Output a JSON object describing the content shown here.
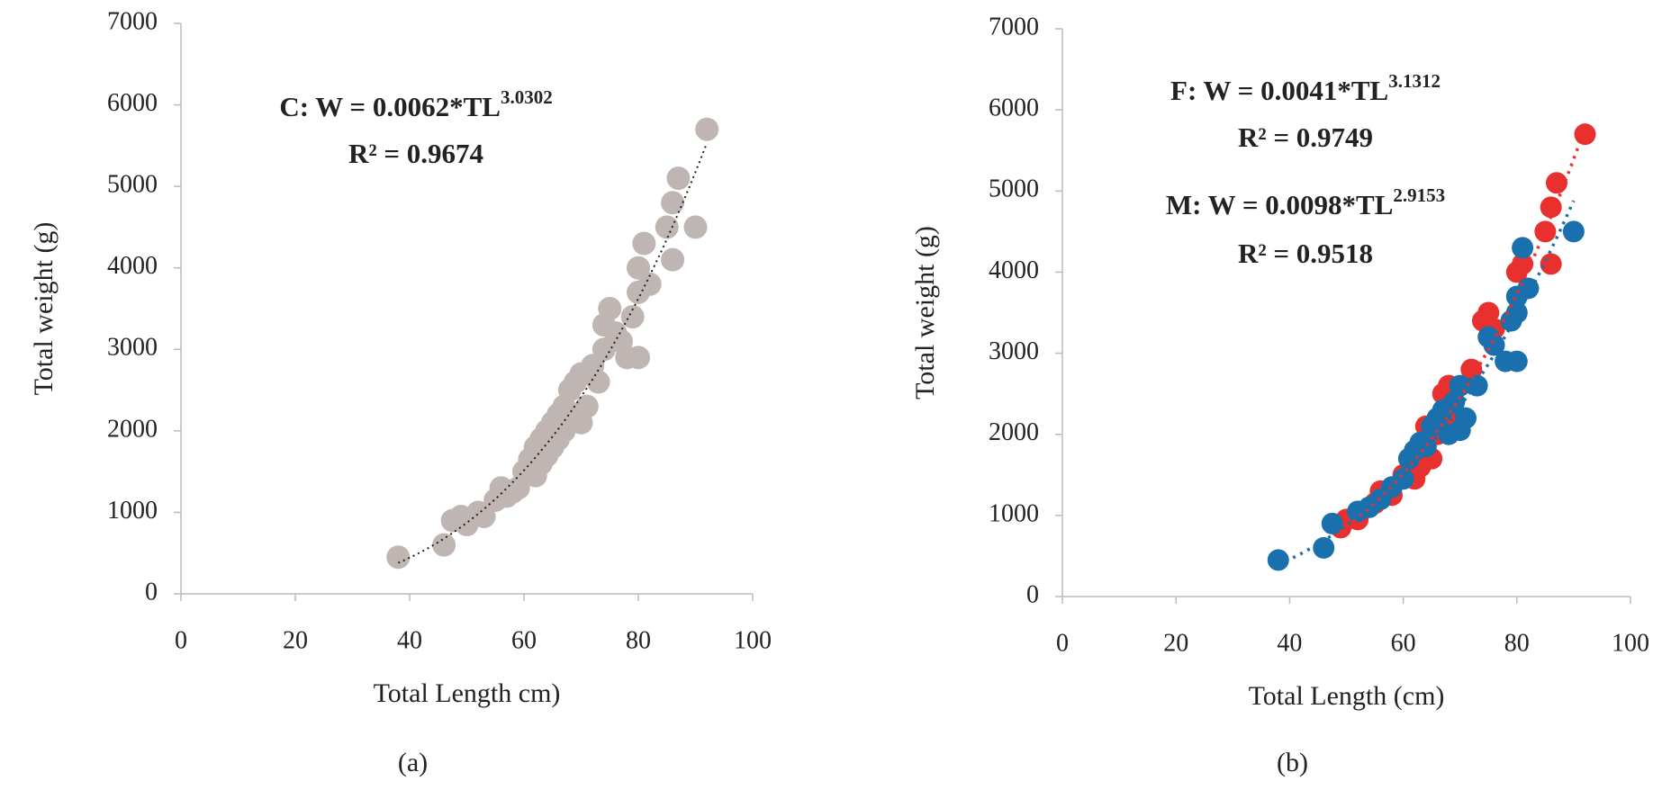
{
  "chart_data": [
    {
      "type": "scatter",
      "panel_label": "(a)",
      "xlabel": "Total Length cm)",
      "ylabel": "Total weight (g)",
      "ylabel_color": "#222222",
      "xlim": [
        0,
        100
      ],
      "ylim": [
        0,
        7000
      ],
      "xticks": [
        0,
        20,
        40,
        60,
        80,
        100
      ],
      "yticks": [
        0,
        1000,
        2000,
        3000,
        4000,
        5000,
        6000,
        7000
      ],
      "series": [
        {
          "color": "#bfb5b3",
          "x": [
            38,
            46,
            47.5,
            49,
            50,
            52,
            53,
            55,
            56,
            57,
            58,
            59,
            60,
            61,
            62,
            62,
            63,
            63,
            64,
            64,
            65,
            65,
            66,
            66,
            67,
            67,
            68,
            68,
            69,
            69,
            70,
            70,
            71,
            72,
            73,
            74,
            74,
            75,
            76,
            77,
            78,
            79,
            80,
            80,
            80,
            81,
            82,
            85,
            86,
            86,
            87,
            90,
            92
          ],
          "values": [
            450,
            600,
            900,
            950,
            850,
            1000,
            950,
            1150,
            1300,
            1200,
            1250,
            1300,
            1500,
            1650,
            1800,
            1450,
            1900,
            1600,
            2000,
            1700,
            2100,
            1800,
            2200,
            1900,
            2300,
            2000,
            2500,
            2100,
            2600,
            2200,
            2700,
            2100,
            2300,
            2800,
            2600,
            3000,
            3300,
            3500,
            3200,
            3100,
            2900,
            3400,
            2900,
            3700,
            4000,
            4300,
            3800,
            4500,
            4100,
            4800,
            5100,
            4500,
            5700
          ],
          "trend": {
            "color": "#222222",
            "prefix": "C: W = ",
            "a": 0.0062,
            "mid": "*TL",
            "b": 3.0302,
            "r2_prefix": "R² = ",
            "r2": 0.9674
          }
        }
      ]
    },
    {
      "type": "scatter",
      "panel_label": "(b)",
      "xlabel": "Total Length (cm)",
      "ylabel": "Total weight (g)",
      "ylabel_color": "#7a7a7a",
      "xlim": [
        0,
        100
      ],
      "ylim": [
        0,
        7000
      ],
      "xticks": [
        0,
        20,
        40,
        60,
        80,
        100
      ],
      "yticks": [
        0,
        1000,
        2000,
        3000,
        4000,
        5000,
        6000,
        7000
      ],
      "series": [
        {
          "color": "#e8312f",
          "x": [
            49,
            50,
            52,
            55,
            56,
            58,
            60,
            62,
            63,
            64,
            65,
            66,
            67,
            68,
            69,
            72,
            74,
            75,
            76,
            80,
            81,
            85,
            86,
            86,
            87,
            92
          ],
          "values": [
            850,
            950,
            950,
            1150,
            1300,
            1250,
            1500,
            1450,
            1600,
            2100,
            1700,
            2000,
            2500,
            2600,
            2200,
            2800,
            3400,
            3500,
            3300,
            4000,
            4100,
            4500,
            4100,
            4800,
            5100,
            5700
          ],
          "trend": {
            "color": "#e8312f",
            "prefix": "F: W = ",
            "a": 0.0041,
            "mid": "*TL",
            "b": 3.1312,
            "r2_prefix": "R² = ",
            "r2": 0.9749
          }
        },
        {
          "color": "#1a70ad",
          "x": [
            38,
            46,
            47.5,
            52,
            54,
            56,
            58,
            60,
            61,
            62,
            63,
            64,
            65,
            66,
            67,
            68,
            69,
            70,
            70,
            71,
            73,
            75,
            76,
            78,
            79,
            80,
            80,
            80,
            81,
            82,
            90
          ],
          "values": [
            450,
            600,
            900,
            1050,
            1100,
            1200,
            1350,
            1450,
            1700,
            1800,
            1900,
            1850,
            2100,
            2200,
            2300,
            2000,
            2400,
            2600,
            2050,
            2200,
            2600,
            3200,
            3100,
            2900,
            3400,
            3700,
            2900,
            3500,
            4300,
            3800,
            4500
          ],
          "trend": {
            "color": "#3b4a6b",
            "prefix": "M: W = ",
            "a": 0.0098,
            "mid": "*TL",
            "b": 2.9153,
            "r2_prefix": "R² = ",
            "r2": 0.9518
          }
        }
      ]
    }
  ]
}
